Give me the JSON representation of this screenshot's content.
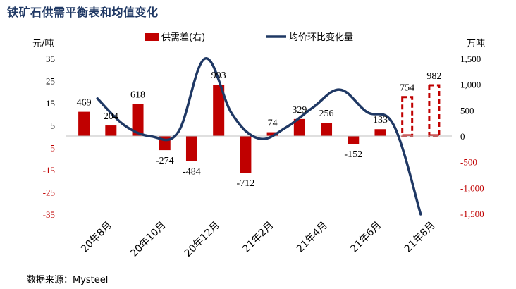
{
  "page_title": "铁矿石供需平衡表和均值变化",
  "source": "数据来源：Mysteel",
  "chart_data": {
    "type": "bar+line",
    "title": "铁矿石供需平衡表和均值变化",
    "left_axis": {
      "unit": "元/吨",
      "ylim": [
        -35,
        35
      ],
      "ticks": [
        35,
        25,
        15,
        5,
        -5,
        -15,
        -25,
        -35
      ],
      "tick_labels": [
        "35",
        "25",
        "15",
        "5",
        "-5",
        "-15",
        "-25",
        "-35"
      ]
    },
    "right_axis": {
      "unit": "万吨",
      "ylim": [
        -1500,
        1500
      ],
      "ticks": [
        1500,
        1000,
        500,
        0,
        -500,
        -1000,
        -1500
      ],
      "tick_labels": [
        "1,500",
        "1,000",
        "500",
        "0",
        "-500",
        "-1,000",
        "-1,500"
      ]
    },
    "x_tick_labels": [
      "20年8月",
      "20年10月",
      "20年12月",
      "21年2月",
      "21年4月",
      "21年6月",
      "21年8月"
    ],
    "legend": [
      {
        "name": "供需差(右)",
        "kind": "bar",
        "color": "#c00000"
      },
      {
        "name": "均价环比变化量",
        "kind": "line",
        "color": "#1f3864"
      }
    ],
    "bars": {
      "name": "供需差(右)",
      "axis": "right",
      "values": [
        469,
        204,
        618,
        -274,
        -484,
        993,
        -712,
        74,
        329,
        256,
        -152,
        133,
        754,
        982
      ],
      "labels": [
        "469",
        "204",
        "618",
        "-274",
        "-484",
        "993",
        "-712",
        "74",
        "329",
        "256",
        "-152",
        "133",
        "754",
        "982"
      ],
      "forecast": [
        false,
        false,
        false,
        false,
        false,
        false,
        false,
        false,
        false,
        false,
        false,
        false,
        true,
        true
      ],
      "color": "#c00000"
    },
    "line": {
      "name": "均价环比变化量",
      "axis": "left",
      "values": [
        17,
        5,
        0,
        2,
        35,
        10,
        -1,
        4,
        13,
        21,
        11,
        5,
        -35
      ],
      "color": "#1f3864"
    }
  }
}
